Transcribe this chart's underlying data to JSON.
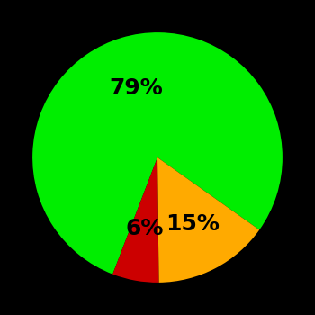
{
  "slices": [
    79,
    15,
    6
  ],
  "colors": [
    "#00ee00",
    "#ffaa00",
    "#cc0000"
  ],
  "labels": [
    "79%",
    "15%",
    "6%"
  ],
  "background_color": "#000000",
  "text_color": "#000000",
  "startangle": -111,
  "label_fontsize": 18,
  "label_fontweight": "bold",
  "label_radii": [
    0.58,
    0.6,
    0.58
  ]
}
